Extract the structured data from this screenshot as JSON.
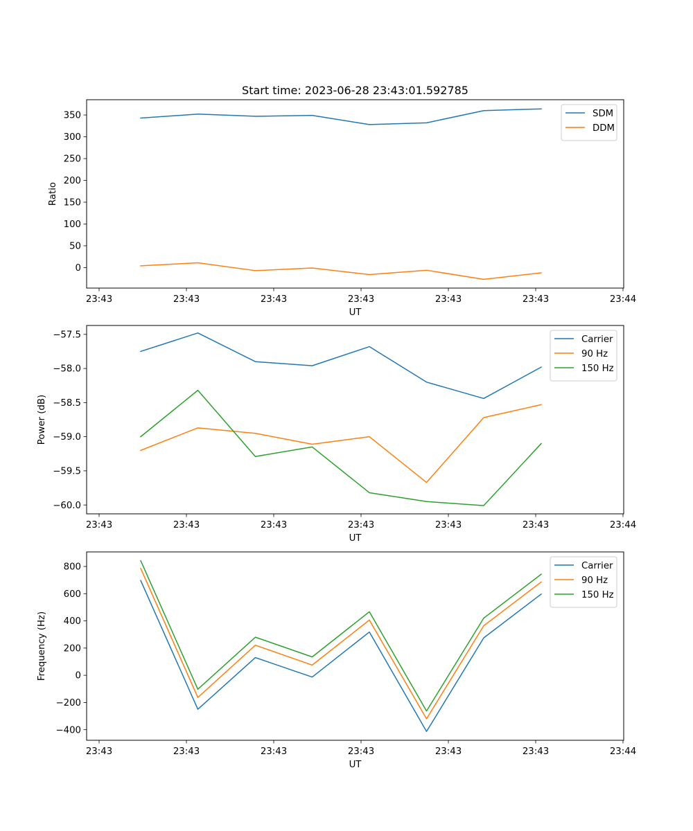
{
  "figure": {
    "title": "Start time: 2023-06-28 23:43:01.592785"
  },
  "colors": {
    "blue": "#1f77b4",
    "orange": "#ff7f0e",
    "green": "#2ca02c"
  },
  "chart_data": [
    {
      "type": "line",
      "title": "Start time: 2023-06-28 23:43:01.592785",
      "xlabel": "UT",
      "ylabel": "Ratio",
      "x_tick_labels": [
        "23:43",
        "23:43",
        "23:43",
        "23:43",
        "23:43",
        "23:43",
        "23:44"
      ],
      "y_ticks": [
        0,
        50,
        100,
        150,
        200,
        250,
        300,
        350
      ],
      "ylim": [
        -47,
        385
      ],
      "grid": false,
      "legend": "top-right",
      "series": [
        {
          "name": "SDM",
          "color": "#1f77b4",
          "values": [
            343,
            352,
            347,
            349,
            328,
            332,
            360,
            364
          ]
        },
        {
          "name": "DDM",
          "color": "#ff7f0e",
          "values": [
            4,
            11,
            -7,
            -1,
            -16,
            -6,
            -27,
            -12
          ]
        }
      ]
    },
    {
      "type": "line",
      "title": "",
      "xlabel": "UT",
      "ylabel": "Power (dB)",
      "x_tick_labels": [
        "23:43",
        "23:43",
        "23:43",
        "23:43",
        "23:43",
        "23:43",
        "23:44"
      ],
      "y_ticks": [
        -57.5,
        -58.0,
        -58.5,
        -59.0,
        -59.5,
        -60.0
      ],
      "y_tick_labels": [
        "−57.5",
        "−58.0",
        "−58.5",
        "−59.0",
        "−59.5",
        "−60.0"
      ],
      "ylim": [
        -60.13,
        -57.37
      ],
      "grid": false,
      "legend": "top-right",
      "series": [
        {
          "name": "Carrier",
          "color": "#1f77b4",
          "values": [
            -57.75,
            -57.48,
            -57.9,
            -57.96,
            -57.68,
            -58.2,
            -58.44,
            -57.98
          ]
        },
        {
          "name": "90 Hz",
          "color": "#ff7f0e",
          "values": [
            -59.2,
            -58.87,
            -58.95,
            -59.11,
            -59.0,
            -59.67,
            -58.72,
            -58.53
          ]
        },
        {
          "name": "150 Hz",
          "color": "#2ca02c",
          "values": [
            -59.0,
            -58.32,
            -59.29,
            -59.15,
            -59.82,
            -59.95,
            -60.01,
            -59.1
          ]
        }
      ]
    },
    {
      "type": "line",
      "title": "",
      "xlabel": "UT",
      "ylabel": "Frequency (Hz)",
      "x_tick_labels": [
        "23:43",
        "23:43",
        "23:43",
        "23:43",
        "23:43",
        "23:43",
        "23:44"
      ],
      "y_ticks": [
        -400,
        -200,
        0,
        200,
        400,
        600,
        800
      ],
      "y_tick_labels": [
        "−400",
        "−200",
        "0",
        "200",
        "400",
        "600",
        "800"
      ],
      "ylim": [
        -478,
        907
      ],
      "grid": false,
      "legend": "top-right",
      "series": [
        {
          "name": "Carrier",
          "color": "#1f77b4",
          "values": [
            697,
            -250,
            130,
            -13,
            318,
            -413,
            275,
            597
          ]
        },
        {
          "name": "90 Hz",
          "color": "#ff7f0e",
          "values": [
            786,
            -163,
            221,
            75,
            406,
            -320,
            364,
            686
          ]
        },
        {
          "name": "150 Hz",
          "color": "#2ca02c",
          "values": [
            843,
            -103,
            280,
            135,
            467,
            -263,
            420,
            743
          ]
        }
      ]
    }
  ]
}
